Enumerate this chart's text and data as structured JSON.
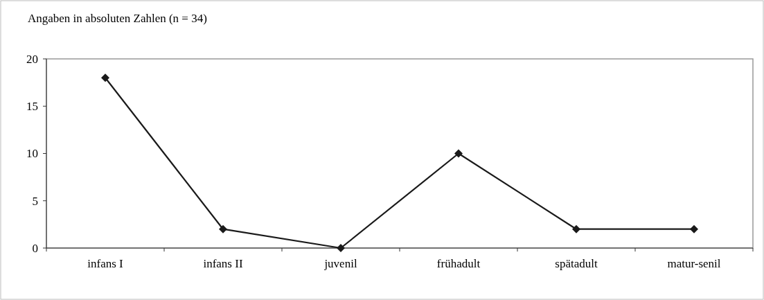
{
  "chart_data": {
    "type": "line",
    "title": "Angaben in absoluten Zahlen (n = 34)",
    "categories": [
      "infans I",
      "infans II",
      "juvenil",
      "frühadult",
      "spätadult",
      "matur-senil"
    ],
    "series": [
      {
        "color": "#1a1a1a",
        "values": [
          18,
          2,
          0,
          10,
          2,
          2
        ]
      }
    ],
    "ylim": [
      0,
      20
    ],
    "yticks": [
      0,
      5,
      10,
      15,
      20
    ],
    "marker": "diamond",
    "grid": false
  }
}
